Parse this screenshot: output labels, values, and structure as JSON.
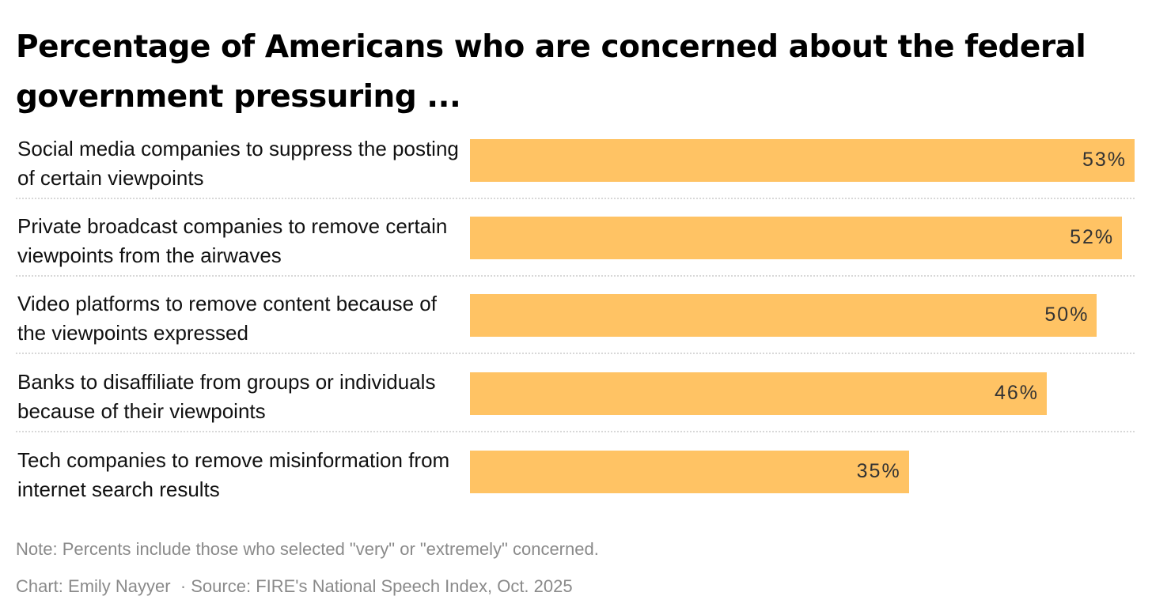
{
  "chart_data": {
    "type": "bar",
    "orientation": "horizontal",
    "title": "Percentage of Americans who are concerned about the federal government pressuring ...",
    "categories": [
      "Social media companies to suppress the posting of certain viewpoints",
      "Private broadcast companies to remove certain viewpoints from the airwaves",
      "Video platforms to remove content because of the viewpoints expressed",
      "Banks to disaffiliate from groups or individuals because of their viewpoints",
      "Tech companies to remove misinformation from internet search results"
    ],
    "values": [
      53,
      52,
      50,
      46,
      35
    ],
    "value_labels": [
      "53%",
      "52%",
      "50%",
      "46%",
      "35%"
    ],
    "xlim": [
      0,
      53
    ],
    "grid": false,
    "bar_color": "#ffc364"
  },
  "footer": {
    "note": "Note: Percents include those who selected \"very\" or \"extremely\" concerned.",
    "credit": "Chart: Emily Nayyer  · Source: FIRE's National Speech Index, Oct. 2025"
  }
}
